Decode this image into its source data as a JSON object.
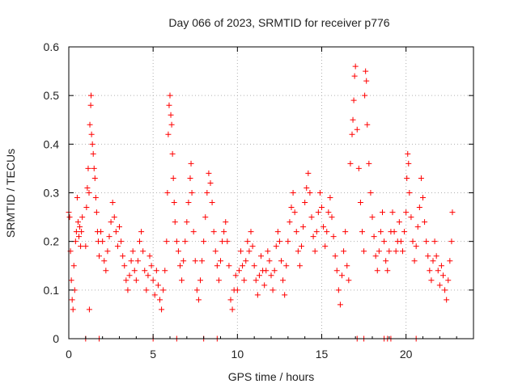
{
  "chart_data": {
    "type": "scatter",
    "title": "Day 066 of 2023, SRMTID for receiver p776",
    "xlabel": "GPS time / hours",
    "ylabel": "SRMTID / TECUs",
    "xlim": [
      0,
      24
    ],
    "ylim": [
      0,
      0.6
    ],
    "xticks": [
      0,
      5,
      10,
      15,
      20
    ],
    "xtick_labels": [
      "0",
      "5",
      "10",
      "15",
      "20"
    ],
    "yticks": [
      0,
      0.1,
      0.2,
      0.3,
      0.4,
      0.5,
      0.6
    ],
    "ytick_labels": [
      "0",
      "0.1",
      "0.2",
      "0.3",
      "0.4",
      "0.5",
      "0.6"
    ],
    "grid": true,
    "marker": "+",
    "color": "#ff0000",
    "series": [
      {
        "name": "SRMTID",
        "points": [
          [
            0.0,
            0.26
          ],
          [
            0.05,
            0.25
          ],
          [
            0.1,
            0.18
          ],
          [
            0.15,
            0.12
          ],
          [
            0.2,
            0.08
          ],
          [
            0.25,
            0.06
          ],
          [
            0.3,
            0.15
          ],
          [
            0.35,
            0.1
          ],
          [
            0.4,
            0.2
          ],
          [
            0.45,
            0.22
          ],
          [
            0.5,
            0.29
          ],
          [
            0.55,
            0.24
          ],
          [
            0.6,
            0.21
          ],
          [
            0.65,
            0.23
          ],
          [
            0.7,
            0.19
          ],
          [
            0.75,
            0.22
          ],
          [
            0.8,
            0.25
          ],
          [
            1.0,
            0.19
          ],
          [
            1.05,
            0.27
          ],
          [
            1.1,
            0.31
          ],
          [
            1.15,
            0.35
          ],
          [
            1.2,
            0.3
          ],
          [
            1.22,
            0.06
          ],
          [
            1.25,
            0.44
          ],
          [
            1.3,
            0.48
          ],
          [
            1.32,
            0.5
          ],
          [
            1.35,
            0.42
          ],
          [
            1.4,
            0.4
          ],
          [
            1.45,
            0.38
          ],
          [
            1.5,
            0.35
          ],
          [
            1.55,
            0.33
          ],
          [
            1.6,
            0.29
          ],
          [
            1.65,
            0.26
          ],
          [
            1.7,
            0.22
          ],
          [
            1.75,
            0.2
          ],
          [
            1.8,
            0.17
          ],
          [
            1.9,
            0.22
          ],
          [
            2.0,
            0.2
          ],
          [
            2.1,
            0.16
          ],
          [
            2.2,
            0.14
          ],
          [
            2.3,
            0.18
          ],
          [
            2.4,
            0.21
          ],
          [
            2.5,
            0.24
          ],
          [
            2.6,
            0.28
          ],
          [
            2.7,
            0.25
          ],
          [
            2.8,
            0.22
          ],
          [
            2.9,
            0.19
          ],
          [
            3.0,
            0.23
          ],
          [
            3.1,
            0.2
          ],
          [
            3.2,
            0.17
          ],
          [
            3.3,
            0.15
          ],
          [
            3.4,
            0.12
          ],
          [
            3.5,
            0.1
          ],
          [
            3.6,
            0.13
          ],
          [
            3.7,
            0.16
          ],
          [
            3.8,
            0.18
          ],
          [
            3.9,
            0.14
          ],
          [
            4.0,
            0.12
          ],
          [
            4.1,
            0.16
          ],
          [
            4.2,
            0.2
          ],
          [
            4.3,
            0.22
          ],
          [
            4.4,
            0.18
          ],
          [
            4.5,
            0.14
          ],
          [
            4.6,
            0.1
          ],
          [
            4.7,
            0.13
          ],
          [
            4.8,
            0.17
          ],
          [
            4.9,
            0.15
          ],
          [
            5.0,
            0.12
          ],
          [
            5.1,
            0.09
          ],
          [
            5.2,
            0.14
          ],
          [
            5.3,
            0.11
          ],
          [
            5.4,
            0.08
          ],
          [
            5.5,
            0.06
          ],
          [
            5.6,
            0.1
          ],
          [
            5.7,
            0.14
          ],
          [
            5.8,
            0.2
          ],
          [
            5.85,
            0.3
          ],
          [
            5.9,
            0.42
          ],
          [
            5.95,
            0.48
          ],
          [
            6.0,
            0.5
          ],
          [
            6.05,
            0.46
          ],
          [
            6.1,
            0.44
          ],
          [
            6.15,
            0.38
          ],
          [
            6.2,
            0.33
          ],
          [
            6.25,
            0.28
          ],
          [
            6.3,
            0.24
          ],
          [
            6.4,
            0.2
          ],
          [
            6.5,
            0.18
          ],
          [
            6.6,
            0.15
          ],
          [
            6.7,
            0.12
          ],
          [
            6.8,
            0.16
          ],
          [
            6.9,
            0.2
          ],
          [
            7.0,
            0.24
          ],
          [
            7.1,
            0.28
          ],
          [
            7.2,
            0.33
          ],
          [
            7.25,
            0.36
          ],
          [
            7.3,
            0.3
          ],
          [
            7.4,
            0.22
          ],
          [
            7.5,
            0.16
          ],
          [
            7.6,
            0.1
          ],
          [
            7.7,
            0.08
          ],
          [
            7.8,
            0.12
          ],
          [
            7.9,
            0.16
          ],
          [
            8.0,
            0.2
          ],
          [
            8.1,
            0.25
          ],
          [
            8.2,
            0.3
          ],
          [
            8.3,
            0.34
          ],
          [
            8.4,
            0.32
          ],
          [
            8.5,
            0.28
          ],
          [
            8.6,
            0.22
          ],
          [
            8.7,
            0.18
          ],
          [
            8.8,
            0.15
          ],
          [
            8.9,
            0.12
          ],
          [
            9.0,
            0.16
          ],
          [
            9.1,
            0.2
          ],
          [
            9.2,
            0.22
          ],
          [
            9.3,
            0.24
          ],
          [
            9.4,
            0.2
          ],
          [
            9.5,
            0.15
          ],
          [
            9.6,
            0.08
          ],
          [
            9.7,
            0.06
          ],
          [
            9.8,
            0.1
          ],
          [
            9.9,
            0.13
          ],
          [
            10.0,
            0.1
          ],
          [
            10.1,
            0.14
          ],
          [
            10.2,
            0.18
          ],
          [
            10.3,
            0.15
          ],
          [
            10.4,
            0.12
          ],
          [
            10.5,
            0.16
          ],
          [
            10.6,
            0.2
          ],
          [
            10.7,
            0.18
          ],
          [
            10.8,
            0.22
          ],
          [
            10.9,
            0.19
          ],
          [
            11.0,
            0.15
          ],
          [
            11.1,
            0.12
          ],
          [
            11.2,
            0.09
          ],
          [
            11.3,
            0.13
          ],
          [
            11.4,
            0.17
          ],
          [
            11.5,
            0.14
          ],
          [
            11.6,
            0.11
          ],
          [
            11.7,
            0.14
          ],
          [
            11.8,
            0.18
          ],
          [
            11.9,
            0.16
          ],
          [
            12.0,
            0.13
          ],
          [
            12.1,
            0.1
          ],
          [
            12.2,
            0.14
          ],
          [
            12.3,
            0.19
          ],
          [
            12.4,
            0.22
          ],
          [
            12.5,
            0.2
          ],
          [
            12.6,
            0.16
          ],
          [
            12.7,
            0.12
          ],
          [
            12.8,
            0.09
          ],
          [
            12.9,
            0.15
          ],
          [
            13.0,
            0.2
          ],
          [
            13.1,
            0.24
          ],
          [
            13.2,
            0.27
          ],
          [
            13.3,
            0.3
          ],
          [
            13.4,
            0.26
          ],
          [
            13.5,
            0.22
          ],
          [
            13.6,
            0.18
          ],
          [
            13.7,
            0.15
          ],
          [
            13.8,
            0.19
          ],
          [
            13.9,
            0.23
          ],
          [
            14.0,
            0.28
          ],
          [
            14.1,
            0.31
          ],
          [
            14.2,
            0.34
          ],
          [
            14.3,
            0.3
          ],
          [
            14.4,
            0.25
          ],
          [
            14.5,
            0.21
          ],
          [
            14.6,
            0.18
          ],
          [
            14.7,
            0.22
          ],
          [
            14.8,
            0.26
          ],
          [
            14.9,
            0.3
          ],
          [
            15.0,
            0.27
          ],
          [
            15.1,
            0.23
          ],
          [
            15.2,
            0.19
          ],
          [
            15.3,
            0.22
          ],
          [
            15.4,
            0.26
          ],
          [
            15.5,
            0.29
          ],
          [
            15.6,
            0.25
          ],
          [
            15.7,
            0.21
          ],
          [
            15.8,
            0.17
          ],
          [
            15.9,
            0.14
          ],
          [
            16.0,
            0.1
          ],
          [
            16.1,
            0.07
          ],
          [
            16.2,
            0.13
          ],
          [
            16.3,
            0.18
          ],
          [
            16.4,
            0.22
          ],
          [
            16.5,
            0.15
          ],
          [
            16.6,
            0.12
          ],
          [
            16.7,
            0.36
          ],
          [
            16.8,
            0.42
          ],
          [
            16.85,
            0.45
          ],
          [
            16.9,
            0.49
          ],
          [
            16.95,
            0.54
          ],
          [
            17.0,
            0.56
          ],
          [
            17.1,
            0.43
          ],
          [
            17.2,
            0.35
          ],
          [
            17.3,
            0.28
          ],
          [
            17.4,
            0.22
          ],
          [
            17.5,
            0.18
          ],
          [
            17.55,
            0.5
          ],
          [
            17.6,
            0.55
          ],
          [
            17.65,
            0.53
          ],
          [
            17.7,
            0.44
          ],
          [
            17.8,
            0.36
          ],
          [
            17.9,
            0.3
          ],
          [
            18.0,
            0.25
          ],
          [
            18.1,
            0.21
          ],
          [
            18.2,
            0.17
          ],
          [
            18.3,
            0.14
          ],
          [
            18.4,
            0.18
          ],
          [
            18.5,
            0.22
          ],
          [
            18.6,
            0.26
          ],
          [
            18.7,
            0.2
          ],
          [
            18.8,
            0.16
          ],
          [
            18.9,
            0.14
          ],
          [
            19.0,
            0.18
          ],
          [
            19.1,
            0.22
          ],
          [
            19.2,
            0.26
          ],
          [
            19.3,
            0.22
          ],
          [
            19.4,
            0.18
          ],
          [
            19.5,
            0.2
          ],
          [
            19.6,
            0.24
          ],
          [
            19.7,
            0.2
          ],
          [
            19.8,
            0.18
          ],
          [
            19.9,
            0.22
          ],
          [
            20.0,
            0.26
          ],
          [
            20.05,
            0.33
          ],
          [
            20.1,
            0.38
          ],
          [
            20.15,
            0.36
          ],
          [
            20.2,
            0.3
          ],
          [
            20.3,
            0.25
          ],
          [
            20.4,
            0.2
          ],
          [
            20.5,
            0.16
          ],
          [
            20.6,
            0.19
          ],
          [
            20.7,
            0.23
          ],
          [
            20.8,
            0.27
          ],
          [
            20.9,
            0.33
          ],
          [
            21.0,
            0.29
          ],
          [
            21.1,
            0.24
          ],
          [
            21.2,
            0.2
          ],
          [
            21.3,
            0.17
          ],
          [
            21.4,
            0.14
          ],
          [
            21.5,
            0.12
          ],
          [
            21.6,
            0.16
          ],
          [
            21.7,
            0.2
          ],
          [
            21.8,
            0.17
          ],
          [
            21.9,
            0.14
          ],
          [
            22.0,
            0.11
          ],
          [
            22.1,
            0.15
          ],
          [
            22.2,
            0.13
          ],
          [
            22.3,
            0.1
          ],
          [
            22.4,
            0.08
          ],
          [
            22.5,
            0.12
          ],
          [
            22.6,
            0.16
          ],
          [
            22.7,
            0.2
          ],
          [
            22.75,
            0.26
          ]
        ]
      }
    ],
    "zero_points_x": [
      1.0,
      1.8,
      5.0,
      6.4,
      8.0,
      8.8,
      17.1,
      17.5,
      18.7,
      18.9,
      19.1,
      20.6
    ]
  }
}
